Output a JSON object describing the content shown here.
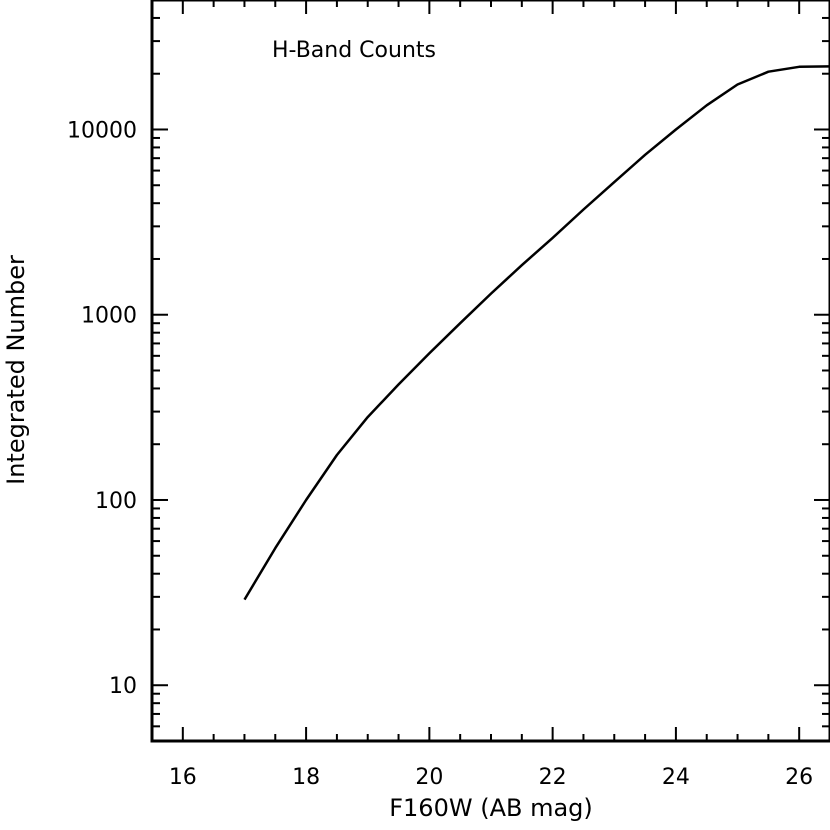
{
  "chart_data": {
    "type": "line",
    "title": "",
    "xlabel": "F160W (AB mag)",
    "ylabel": "Integrated Number",
    "annotation": "H-Band Counts",
    "xlim": [
      15.5,
      26.5
    ],
    "ylim": [
      5,
      50000
    ],
    "yscale": "log",
    "grid": false,
    "legend": "none",
    "line_color": "#000000",
    "x_ticks": [
      16,
      18,
      20,
      22,
      24,
      26
    ],
    "x_tick_labels": [
      "16",
      "18",
      "20",
      "22",
      "24",
      "26"
    ],
    "y_ticks": [
      10,
      100,
      1000,
      10000
    ],
    "y_tick_labels": [
      "10",
      "100",
      "1000",
      "10000"
    ],
    "series": [
      {
        "x": [
          17.0,
          17.5,
          18.0,
          18.5,
          19.0,
          19.5,
          20.0,
          20.5,
          21.0,
          21.5,
          22.0,
          22.5,
          23.0,
          23.5,
          24.0,
          24.5,
          25.0,
          25.5,
          26.0,
          26.5
        ],
        "y": [
          29,
          55,
          100,
          175,
          280,
          420,
          620,
          900,
          1300,
          1850,
          2600,
          3700,
          5200,
          7300,
          10000,
          13500,
          17500,
          20500,
          21800,
          21900
        ]
      }
    ]
  }
}
